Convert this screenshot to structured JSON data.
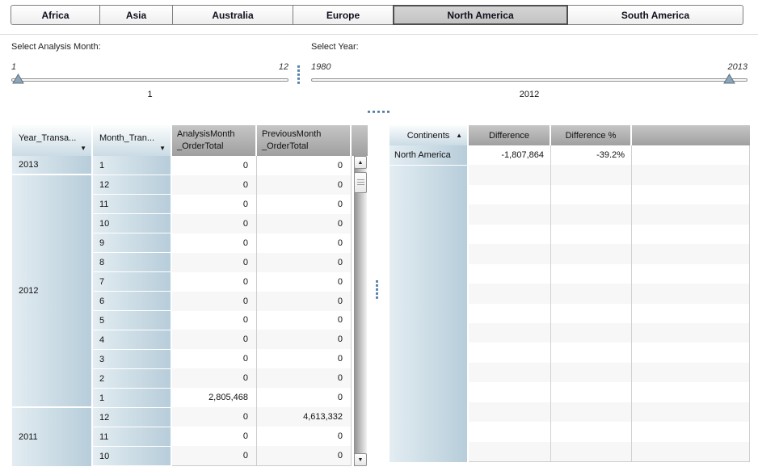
{
  "tabs": [
    {
      "label": "Africa",
      "selected": false
    },
    {
      "label": "Asia",
      "selected": false
    },
    {
      "label": "Australia",
      "selected": false
    },
    {
      "label": "Europe",
      "selected": false
    },
    {
      "label": "North America",
      "selected": true
    },
    {
      "label": "South America",
      "selected": false
    }
  ],
  "filters": {
    "month_slider": {
      "label": "Select Analysis Month:",
      "min_label": "1",
      "max_label": "12",
      "value": "1"
    },
    "year_slider": {
      "label": "Select Year:",
      "min_label": "1980",
      "max_label": "2013",
      "value": "2012"
    }
  },
  "left_table": {
    "headers": {
      "year": "Year_Transa...",
      "month": "Month_Tran...",
      "analysis": [
        "AnalysisMonth",
        "_OrderTotal"
      ],
      "previous": [
        "PreviousMonth",
        "_OrderTotal"
      ]
    },
    "year_groups": [
      {
        "year": "2013",
        "rows": 1
      },
      {
        "year": "2012",
        "rows": 12
      },
      {
        "year": "2011",
        "rows": 3
      }
    ],
    "rows": [
      {
        "month": "1",
        "analysis": "0",
        "previous": "0"
      },
      {
        "month": "12",
        "analysis": "0",
        "previous": "0"
      },
      {
        "month": "11",
        "analysis": "0",
        "previous": "0"
      },
      {
        "month": "10",
        "analysis": "0",
        "previous": "0"
      },
      {
        "month": "9",
        "analysis": "0",
        "previous": "0"
      },
      {
        "month": "8",
        "analysis": "0",
        "previous": "0"
      },
      {
        "month": "7",
        "analysis": "0",
        "previous": "0"
      },
      {
        "month": "6",
        "analysis": "0",
        "previous": "0"
      },
      {
        "month": "5",
        "analysis": "0",
        "previous": "0"
      },
      {
        "month": "4",
        "analysis": "0",
        "previous": "0"
      },
      {
        "month": "3",
        "analysis": "0",
        "previous": "0"
      },
      {
        "month": "2",
        "analysis": "0",
        "previous": "0"
      },
      {
        "month": "1",
        "analysis": "2,805,468",
        "previous": "0"
      },
      {
        "month": "12",
        "analysis": "0",
        "previous": "4,613,332"
      },
      {
        "month": "11",
        "analysis": "0",
        "previous": "0"
      },
      {
        "month": "10",
        "analysis": "0",
        "previous": "0"
      }
    ]
  },
  "right_table": {
    "headers": {
      "continent": "Continents",
      "difference": "Difference",
      "difference_pct": "Difference %"
    },
    "rows": [
      {
        "continent": "North America",
        "difference": "-1,807,864",
        "difference_pct": "-39.2%"
      }
    ],
    "empty_rows": 15
  },
  "icons": {
    "sort_desc": "▼",
    "sort_asc": "▲",
    "scroll_up": "▲",
    "scroll_down": "▼"
  },
  "colors": {
    "selection_blue_start": "#e3edf2",
    "selection_blue_end": "#b7cdda",
    "header_gray": "#a8a8a8",
    "stripe": "#f7f7f7",
    "accent_dot": "#4d79a5",
    "slider_thumb": "#8aa4b8"
  }
}
